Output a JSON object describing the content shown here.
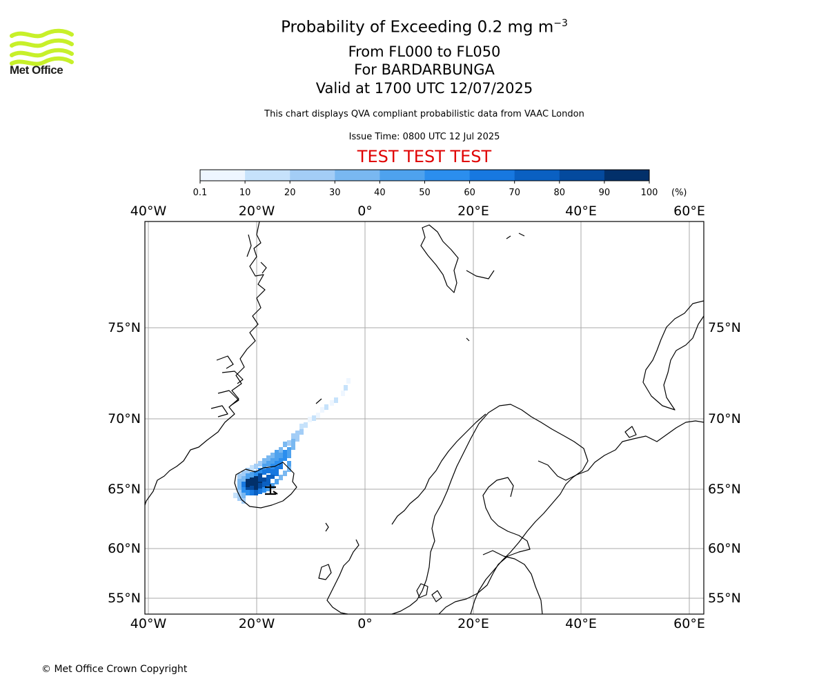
{
  "header": {
    "logo_text": "Met Office",
    "title_main": "Probability of Exceeding 0.2 mg m",
    "title_sup": "−3",
    "subtitle_levels": "From FL000 to FL050",
    "subtitle_volcano": "For BARDARBUNGA",
    "subtitle_valid": "Valid at 1700 UTC 12/07/2025",
    "description": "This chart displays QVA compliant probabilistic data from VAAC London",
    "issue_time": "Issue Time: 0800 UTC 12 Jul 2025",
    "test_banner": "TEST TEST TEST"
  },
  "colorbar": {
    "tick_labels": [
      "0.1",
      "10",
      "20",
      "30",
      "40",
      "50",
      "60",
      "70",
      "80",
      "90",
      "100"
    ],
    "unit_label": "(%)",
    "colors": [
      "#eef6ff",
      "#c6e2fb",
      "#a3cdf6",
      "#79b8f1",
      "#4ea2ee",
      "#2b8eee",
      "#1778e0",
      "#0a60c2",
      "#044a9e",
      "#02306a"
    ]
  },
  "map": {
    "lon_labels": [
      "40°W",
      "20°W",
      "0°",
      "20°E",
      "40°E",
      "60°E"
    ],
    "lat_labels": [
      "75°N",
      "70°N",
      "65°N",
      "60°N",
      "55°N"
    ],
    "gridline_color": "#aaaaaa",
    "coastline_color": "#000000"
  },
  "footer": {
    "copyright": "© Met Office Crown Copyright"
  }
}
